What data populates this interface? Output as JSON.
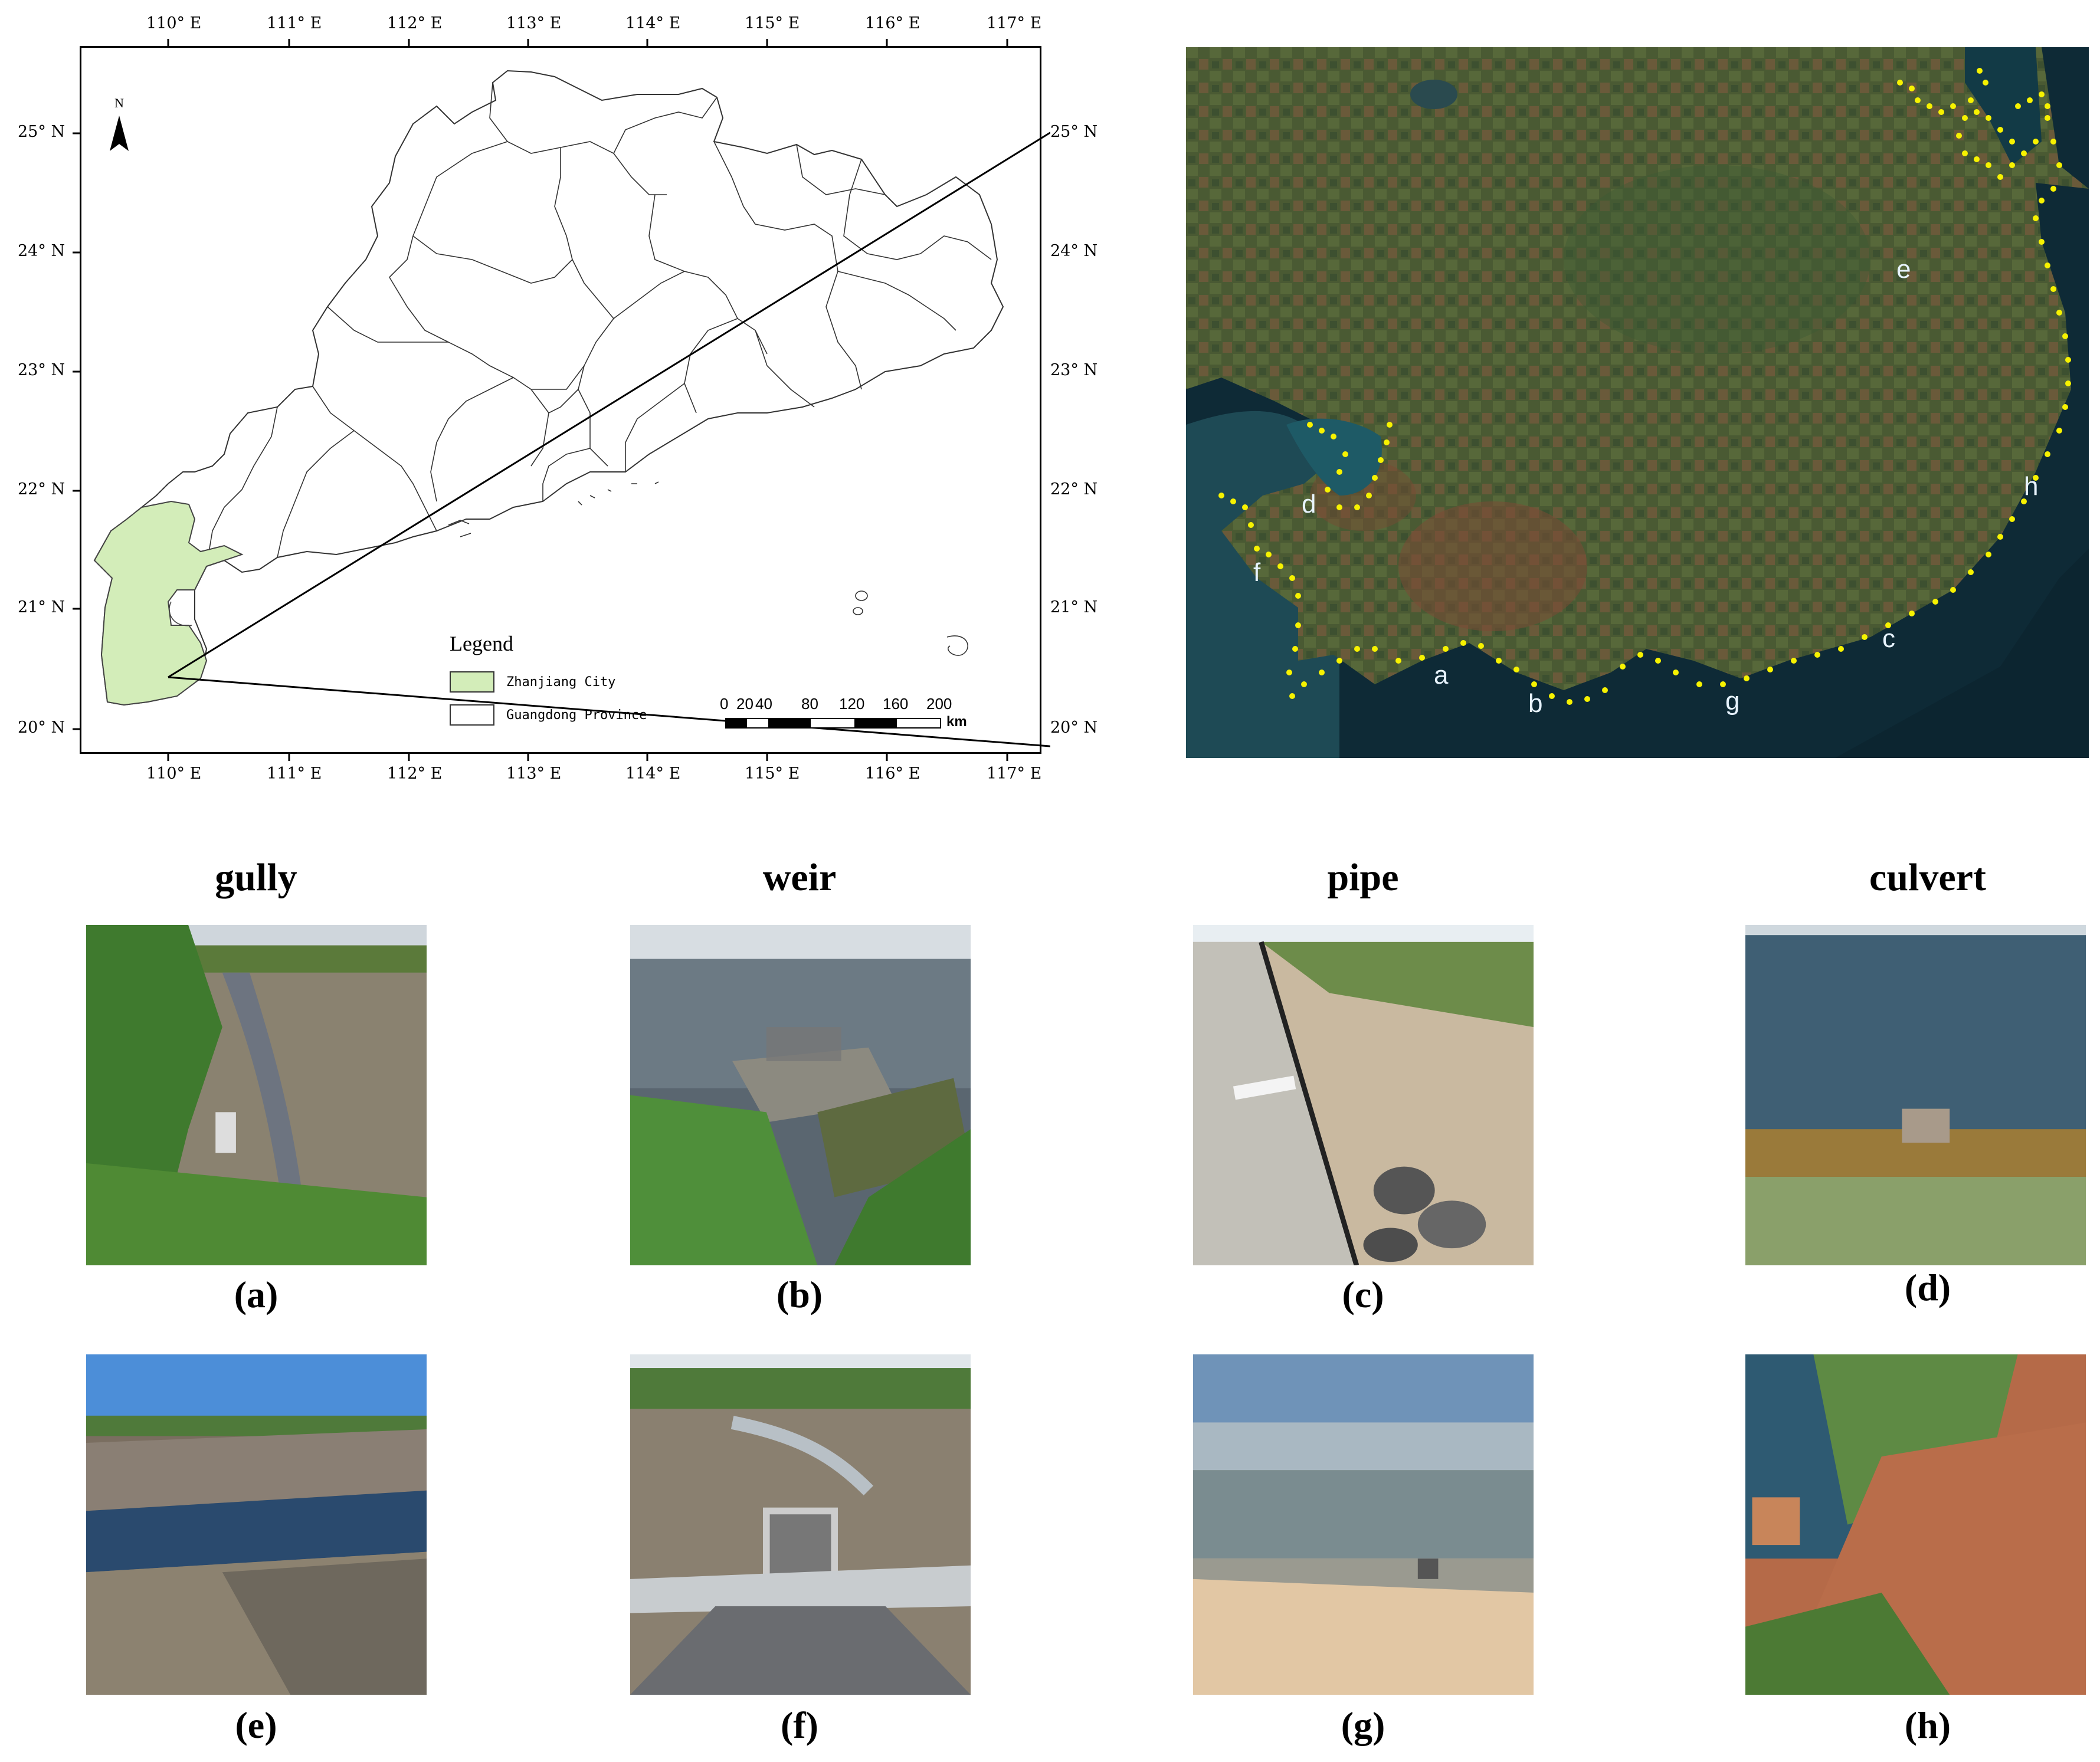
{
  "map": {
    "lon_labels": [
      "110° E",
      "111° E",
      "112° E",
      "113° E",
      "114° E",
      "115° E",
      "116° E",
      "117° E"
    ],
    "lat_labels": [
      "25° N",
      "24° N",
      "23° N",
      "22° N",
      "21° N",
      "20° N"
    ],
    "north_label": "N",
    "legend": {
      "title": "Legend",
      "items": [
        {
          "label": "Zhanjiang City",
          "color": "#d3edb9"
        },
        {
          "label": "Guangdong Province",
          "color": "#ffffff"
        }
      ]
    },
    "scale": {
      "ticks": [
        "0",
        "20",
        "40",
        "80",
        "120",
        "160",
        "200"
      ],
      "unit": "km"
    }
  },
  "satellite": {
    "point_color": "#f7f200",
    "labels": [
      "a",
      "b",
      "c",
      "d",
      "e",
      "f",
      "g",
      "h"
    ]
  },
  "categories": [
    "gully",
    "weir",
    "pipe",
    "culvert"
  ],
  "photos": {
    "captions": [
      "(a)",
      "(b)",
      "(c)",
      "(d)",
      "(e)",
      "(f)",
      "(g)",
      "(h)"
    ]
  }
}
